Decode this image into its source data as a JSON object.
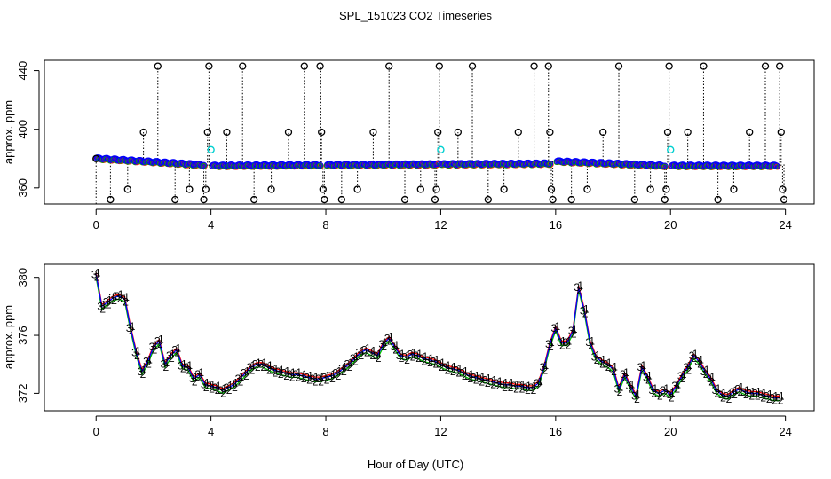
{
  "title": "SPL_151023  CO2 Timeseries",
  "chart_data": [
    {
      "type": "scatter",
      "panel": "top",
      "ylabel": "approx. ppm",
      "xlim": [
        -1.8,
        25
      ],
      "ylim": [
        349,
        447
      ],
      "xticks": [
        0,
        4,
        8,
        12,
        16,
        20,
        24
      ],
      "yticks": [
        360,
        400,
        440
      ],
      "segments": [
        {
          "x0": 0.0,
          "x1": 3.75,
          "y0": 380.0,
          "y1": 375.5
        },
        {
          "x0": 4.05,
          "x1": 7.8,
          "y0": 375.0,
          "y1": 375.5
        },
        {
          "x0": 8.05,
          "x1": 11.9,
          "y0": 375.5,
          "y1": 376.0
        },
        {
          "x0": 12.05,
          "x1": 15.8,
          "y0": 376.0,
          "y1": 376.5
        },
        {
          "x0": 16.05,
          "x1": 19.8,
          "y0": 378.0,
          "y1": 375.0
        },
        {
          "x0": 20.05,
          "x1": 23.7,
          "y0": 375.0,
          "y1": 375.0
        }
      ],
      "spikes": [
        {
          "x": 0.0,
          "y": 380
        },
        {
          "x": 0.5,
          "y": 352
        },
        {
          "x": 1.1,
          "y": 359
        },
        {
          "x": 1.65,
          "y": 398
        },
        {
          "x": 2.15,
          "y": 443
        },
        {
          "x": 2.75,
          "y": 352
        },
        {
          "x": 3.25,
          "y": 359
        },
        {
          "x": 3.75,
          "y": 352
        },
        {
          "x": 3.82,
          "y": 359
        },
        {
          "x": 3.88,
          "y": 398
        },
        {
          "x": 3.93,
          "y": 443
        },
        {
          "x": 4.55,
          "y": 398
        },
        {
          "x": 5.1,
          "y": 443
        },
        {
          "x": 5.5,
          "y": 352
        },
        {
          "x": 6.1,
          "y": 359
        },
        {
          "x": 6.7,
          "y": 398
        },
        {
          "x": 7.25,
          "y": 443
        },
        {
          "x": 7.8,
          "y": 443
        },
        {
          "x": 7.85,
          "y": 398
        },
        {
          "x": 7.9,
          "y": 359
        },
        {
          "x": 7.95,
          "y": 352
        },
        {
          "x": 8.55,
          "y": 352
        },
        {
          "x": 9.1,
          "y": 359
        },
        {
          "x": 9.65,
          "y": 398
        },
        {
          "x": 10.2,
          "y": 443
        },
        {
          "x": 10.75,
          "y": 352
        },
        {
          "x": 11.3,
          "y": 359
        },
        {
          "x": 11.8,
          "y": 352
        },
        {
          "x": 11.85,
          "y": 359
        },
        {
          "x": 11.9,
          "y": 398
        },
        {
          "x": 11.95,
          "y": 443
        },
        {
          "x": 12.6,
          "y": 398
        },
        {
          "x": 13.1,
          "y": 443
        },
        {
          "x": 13.65,
          "y": 352
        },
        {
          "x": 14.2,
          "y": 359
        },
        {
          "x": 14.7,
          "y": 398
        },
        {
          "x": 15.25,
          "y": 443
        },
        {
          "x": 15.75,
          "y": 443
        },
        {
          "x": 15.8,
          "y": 398
        },
        {
          "x": 15.85,
          "y": 359
        },
        {
          "x": 15.9,
          "y": 352
        },
        {
          "x": 16.55,
          "y": 352
        },
        {
          "x": 17.1,
          "y": 359
        },
        {
          "x": 17.65,
          "y": 398
        },
        {
          "x": 18.2,
          "y": 443
        },
        {
          "x": 18.75,
          "y": 352
        },
        {
          "x": 19.3,
          "y": 359
        },
        {
          "x": 19.8,
          "y": 352
        },
        {
          "x": 19.85,
          "y": 359
        },
        {
          "x": 19.9,
          "y": 398
        },
        {
          "x": 19.95,
          "y": 443
        },
        {
          "x": 20.6,
          "y": 398
        },
        {
          "x": 21.15,
          "y": 443
        },
        {
          "x": 21.65,
          "y": 352
        },
        {
          "x": 22.2,
          "y": 359
        },
        {
          "x": 22.75,
          "y": 398
        },
        {
          "x": 23.3,
          "y": 443
        },
        {
          "x": 23.8,
          "y": 443
        },
        {
          "x": 23.85,
          "y": 398
        },
        {
          "x": 23.9,
          "y": 359
        },
        {
          "x": 23.95,
          "y": 352
        }
      ],
      "cyan_points": [
        {
          "x": 4.0,
          "y": 386
        },
        {
          "x": 12.0,
          "y": 386
        },
        {
          "x": 20.0,
          "y": 386
        }
      ]
    },
    {
      "type": "line",
      "panel": "bottom",
      "xlabel": "Hour of Day (UTC)",
      "ylabel": "approx. ppm",
      "xlim": [
        -1.8,
        25
      ],
      "ylim": [
        370.8,
        380.9
      ],
      "xticks": [
        0,
        4,
        8,
        12,
        16,
        20,
        24
      ],
      "yticks": [
        372,
        376,
        380
      ],
      "series_markers": [
        "1",
        "2",
        "3"
      ],
      "series_colors": [
        "#ff0000",
        "#00bb00",
        "#0000ff"
      ],
      "x": [
        0.0,
        0.2,
        0.4,
        0.6,
        0.8,
        1.0,
        1.2,
        1.4,
        1.6,
        1.8,
        2.0,
        2.2,
        2.4,
        2.6,
        2.8,
        3.0,
        3.2,
        3.4,
        3.6,
        3.8,
        4.0,
        4.2,
        4.4,
        4.6,
        4.8,
        5.0,
        5.2,
        5.4,
        5.6,
        5.8,
        6.0,
        6.2,
        6.4,
        6.6,
        6.8,
        7.0,
        7.2,
        7.4,
        7.6,
        7.8,
        8.0,
        8.2,
        8.4,
        8.6,
        8.8,
        9.0,
        9.2,
        9.4,
        9.6,
        9.8,
        10.0,
        10.2,
        10.4,
        10.6,
        10.8,
        11.0,
        11.2,
        11.4,
        11.6,
        11.8,
        12.0,
        12.2,
        12.4,
        12.6,
        12.8,
        13.0,
        13.2,
        13.4,
        13.6,
        13.8,
        14.0,
        14.2,
        14.4,
        14.6,
        14.8,
        15.0,
        15.2,
        15.4,
        15.6,
        15.8,
        16.0,
        16.2,
        16.4,
        16.6,
        16.8,
        17.0,
        17.2,
        17.4,
        17.6,
        17.8,
        18.0,
        18.2,
        18.4,
        18.6,
        18.8,
        19.0,
        19.2,
        19.4,
        19.6,
        19.8,
        20.0,
        20.2,
        20.4,
        20.6,
        20.8,
        21.0,
        21.2,
        21.4,
        21.6,
        21.8,
        22.0,
        22.2,
        22.4,
        22.6,
        22.8,
        23.0,
        23.2,
        23.4,
        23.6,
        23.8
      ],
      "y": [
        380.2,
        378.0,
        378.3,
        378.6,
        378.7,
        378.5,
        376.5,
        374.8,
        373.5,
        374.2,
        375.2,
        375.6,
        374.0,
        374.6,
        375.0,
        373.9,
        373.8,
        373.0,
        373.3,
        372.6,
        372.5,
        372.4,
        372.2,
        372.4,
        372.6,
        373.0,
        373.4,
        373.8,
        374.0,
        374.0,
        373.8,
        373.6,
        373.5,
        373.4,
        373.3,
        373.3,
        373.2,
        373.1,
        373.0,
        373.0,
        373.1,
        373.2,
        373.4,
        373.7,
        374.0,
        374.4,
        374.8,
        375.0,
        374.8,
        374.6,
        375.4,
        375.8,
        375.2,
        374.6,
        374.5,
        374.7,
        374.6,
        374.4,
        374.3,
        374.2,
        374.0,
        373.8,
        373.7,
        373.6,
        373.4,
        373.2,
        373.1,
        373.0,
        372.9,
        372.8,
        372.7,
        372.6,
        372.6,
        372.5,
        372.5,
        372.4,
        372.4,
        372.7,
        373.8,
        375.4,
        376.5,
        375.5,
        375.5,
        376.3,
        379.3,
        377.7,
        375.5,
        374.5,
        374.2,
        374.0,
        373.7,
        372.3,
        373.3,
        372.5,
        371.8,
        373.8,
        373.1,
        372.2,
        372.0,
        372.2,
        371.9,
        372.5,
        373.2,
        373.8,
        374.6,
        374.2,
        373.5,
        373.0,
        372.2,
        371.9,
        371.8,
        372.1,
        372.3,
        372.1,
        372.0,
        372.0,
        371.9,
        371.8,
        371.7,
        371.7
      ]
    }
  ]
}
